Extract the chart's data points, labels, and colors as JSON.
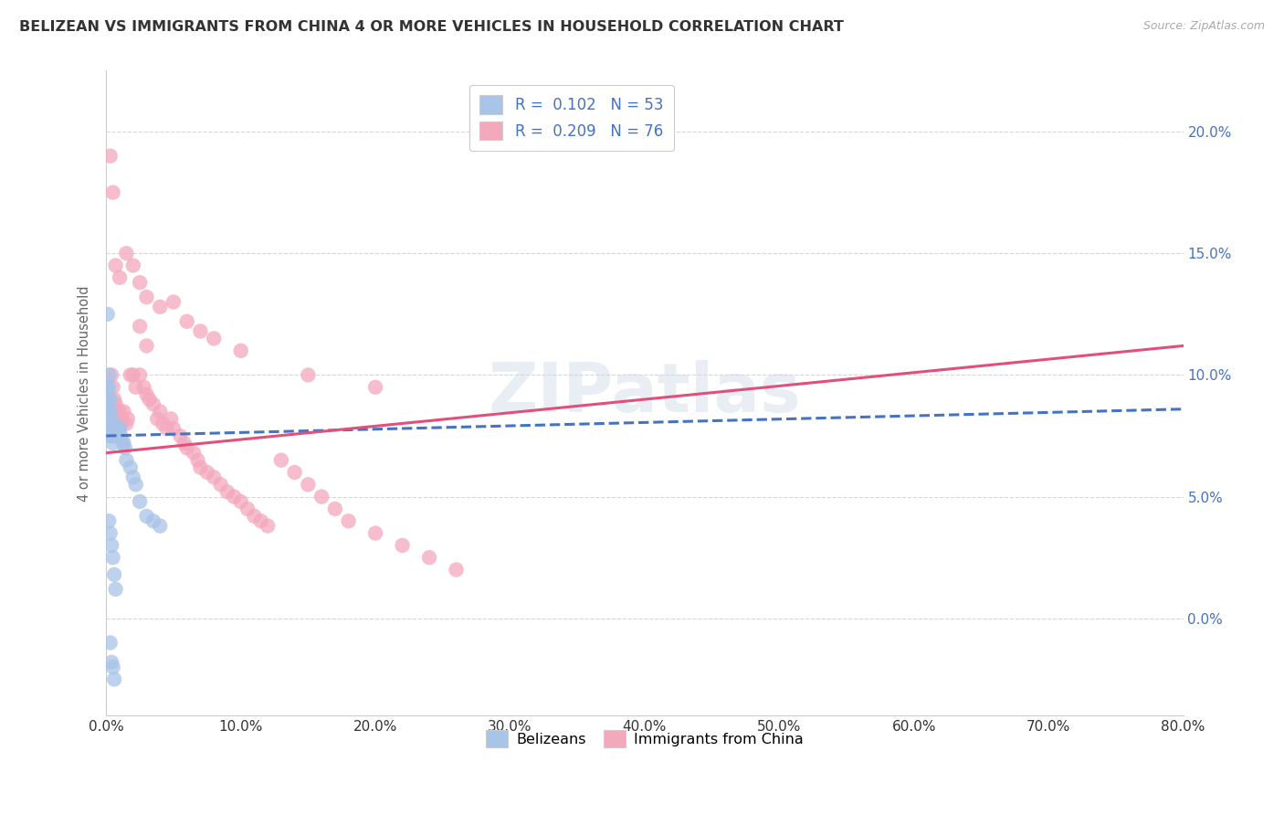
{
  "title": "BELIZEAN VS IMMIGRANTS FROM CHINA 4 OR MORE VEHICLES IN HOUSEHOLD CORRELATION CHART",
  "source": "Source: ZipAtlas.com",
  "ylabel": "4 or more Vehicles in Household",
  "legend_label_1": "Belizeans",
  "legend_label_2": "Immigrants from China",
  "r1": 0.102,
  "n1": 53,
  "r2": 0.209,
  "n2": 76,
  "xlim": [
    0.0,
    0.8
  ],
  "ylim": [
    -0.04,
    0.225
  ],
  "xticks": [
    0.0,
    0.1,
    0.2,
    0.3,
    0.4,
    0.5,
    0.6,
    0.7,
    0.8
  ],
  "yticks": [
    0.0,
    0.05,
    0.1,
    0.15,
    0.2
  ],
  "color_blue": "#a8c4e8",
  "color_pink": "#f4a8bc",
  "trend_blue": "#4472c4",
  "trend_pink": "#e0507a",
  "background": "#ffffff",
  "grid_color": "#cccccc",
  "blue_trend_x0": 0.0,
  "blue_trend_y0": 0.075,
  "blue_trend_x1": 0.8,
  "blue_trend_y1": 0.086,
  "pink_trend_x0": 0.0,
  "pink_trend_y0": 0.068,
  "pink_trend_x1": 0.8,
  "pink_trend_y1": 0.112,
  "blue_dots_x": [
    0.001,
    0.001,
    0.001,
    0.001,
    0.002,
    0.002,
    0.002,
    0.002,
    0.002,
    0.002,
    0.003,
    0.003,
    0.003,
    0.003,
    0.003,
    0.004,
    0.004,
    0.004,
    0.005,
    0.005,
    0.005,
    0.006,
    0.006,
    0.006,
    0.007,
    0.007,
    0.008,
    0.008,
    0.009,
    0.009,
    0.01,
    0.011,
    0.012,
    0.013,
    0.014,
    0.015,
    0.018,
    0.02,
    0.022,
    0.025,
    0.03,
    0.035,
    0.04,
    0.002,
    0.003,
    0.004,
    0.005,
    0.006,
    0.007,
    0.003,
    0.004,
    0.005,
    0.006
  ],
  "blue_dots_y": [
    0.125,
    0.095,
    0.085,
    0.08,
    0.1,
    0.095,
    0.09,
    0.085,
    0.082,
    0.078,
    0.09,
    0.085,
    0.082,
    0.078,
    0.075,
    0.08,
    0.078,
    0.075,
    0.078,
    0.075,
    0.072,
    0.08,
    0.078,
    0.075,
    0.078,
    0.075,
    0.078,
    0.075,
    0.078,
    0.075,
    0.078,
    0.075,
    0.073,
    0.072,
    0.07,
    0.065,
    0.062,
    0.058,
    0.055,
    0.048,
    0.042,
    0.04,
    0.038,
    0.04,
    0.035,
    0.03,
    0.025,
    0.018,
    0.012,
    -0.01,
    -0.018,
    -0.02,
    -0.025
  ],
  "pink_dots_x": [
    0.001,
    0.002,
    0.002,
    0.003,
    0.003,
    0.004,
    0.005,
    0.005,
    0.006,
    0.007,
    0.008,
    0.009,
    0.01,
    0.011,
    0.012,
    0.013,
    0.015,
    0.016,
    0.018,
    0.02,
    0.022,
    0.025,
    0.025,
    0.028,
    0.03,
    0.03,
    0.032,
    0.035,
    0.038,
    0.04,
    0.042,
    0.045,
    0.048,
    0.05,
    0.055,
    0.058,
    0.06,
    0.065,
    0.068,
    0.07,
    0.075,
    0.08,
    0.085,
    0.09,
    0.095,
    0.1,
    0.105,
    0.11,
    0.115,
    0.12,
    0.13,
    0.14,
    0.15,
    0.16,
    0.17,
    0.18,
    0.2,
    0.22,
    0.24,
    0.26,
    0.003,
    0.005,
    0.007,
    0.01,
    0.015,
    0.02,
    0.025,
    0.03,
    0.04,
    0.05,
    0.06,
    0.07,
    0.08,
    0.1,
    0.15,
    0.2
  ],
  "pink_dots_y": [
    0.08,
    0.085,
    0.075,
    0.09,
    0.082,
    0.1,
    0.095,
    0.085,
    0.09,
    0.088,
    0.085,
    0.082,
    0.085,
    0.08,
    0.082,
    0.085,
    0.08,
    0.082,
    0.1,
    0.1,
    0.095,
    0.12,
    0.1,
    0.095,
    0.112,
    0.092,
    0.09,
    0.088,
    0.082,
    0.085,
    0.08,
    0.078,
    0.082,
    0.078,
    0.075,
    0.072,
    0.07,
    0.068,
    0.065,
    0.062,
    0.06,
    0.058,
    0.055,
    0.052,
    0.05,
    0.048,
    0.045,
    0.042,
    0.04,
    0.038,
    0.065,
    0.06,
    0.055,
    0.05,
    0.045,
    0.04,
    0.035,
    0.03,
    0.025,
    0.02,
    0.19,
    0.175,
    0.145,
    0.14,
    0.15,
    0.145,
    0.138,
    0.132,
    0.128,
    0.13,
    0.122,
    0.118,
    0.115,
    0.11,
    0.1,
    0.095
  ]
}
